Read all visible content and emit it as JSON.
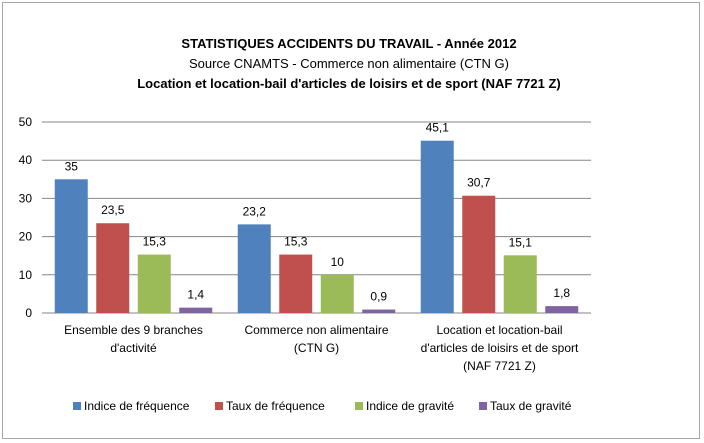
{
  "chart_data": {
    "type": "bar",
    "title_lines": [
      "STATISTIQUES ACCIDENTS DU TRAVAIL - Année 2012",
      "Source CNAMTS -    Commerce non alimentaire (CTN G)",
      "Location et location-bail d'articles de loisirs et de sport (NAF 7721 Z)"
    ],
    "categories": [
      [
        "Ensemble des 9 branches",
        "d'activité"
      ],
      [
        "Commerce non alimentaire",
        "(CTN G)"
      ],
      [
        "Location et location-bail",
        "d'articles de loisirs et de sport",
        "(NAF 7721 Z)"
      ]
    ],
    "series": [
      {
        "name": "Indice de fréquence",
        "color": "#4f81bd",
        "values": [
          35,
          23.2,
          45.1
        ],
        "labels": [
          "35",
          "23,2",
          "45,1"
        ]
      },
      {
        "name": "Taux de fréquence",
        "color": "#c0504d",
        "values": [
          23.5,
          15.3,
          30.7
        ],
        "labels": [
          "23,5",
          "15,3",
          "30,7"
        ]
      },
      {
        "name": "Indice de gravité",
        "color": "#9bbb59",
        "values": [
          15.3,
          10,
          15.1
        ],
        "labels": [
          "15,3",
          "10",
          "15,1"
        ]
      },
      {
        "name": "Taux de gravité",
        "color": "#8064a2",
        "values": [
          1.4,
          0.9,
          1.8
        ],
        "labels": [
          "1,4",
          "0,9",
          "1,8"
        ]
      }
    ],
    "ylim": [
      0,
      50
    ],
    "yticks": [
      "0",
      "10",
      "20",
      "30",
      "40",
      "50"
    ],
    "grid": true,
    "legend_position": "bottom"
  }
}
